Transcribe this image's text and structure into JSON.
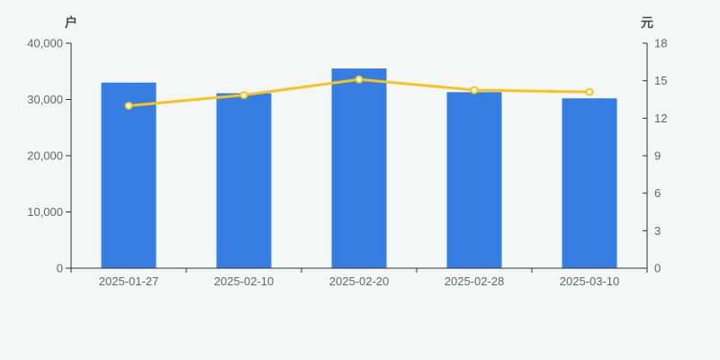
{
  "style": {
    "background": "#f5f6f6",
    "axis_line_color": "#333333",
    "tick_label_color": "#666666",
    "axis_title_color": "#4a4a4a",
    "bar_color": "#377ee2",
    "line_color": "#f9c31c",
    "marker_fill": "#ffffff"
  },
  "chart_data": {
    "type": "bar",
    "categories": [
      "2025-01-27",
      "2025-02-10",
      "2025-02-20",
      "2025-02-28",
      "2025-03-10"
    ],
    "series": [
      {
        "name": "户",
        "type": "bar",
        "y_axis": "left",
        "color": "#377ee2",
        "values": [
          33000,
          31100,
          35500,
          31300,
          30200
        ]
      },
      {
        "name": "元",
        "type": "line",
        "y_axis": "right",
        "color": "#f9c31c",
        "marker": "empty-circle",
        "values": [
          13.0,
          13.85,
          15.1,
          14.25,
          14.1
        ]
      }
    ],
    "title": "",
    "xlabel": "",
    "ylabel_left": "户",
    "ylabel_right": "元",
    "ylim_left": [
      0,
      40000
    ],
    "ylim_right": [
      0,
      18
    ],
    "left_ticks": [
      {
        "v": 0,
        "label": "0"
      },
      {
        "v": 10000,
        "label": "10,000"
      },
      {
        "v": 20000,
        "label": "20,000"
      },
      {
        "v": 30000,
        "label": "30,000"
      },
      {
        "v": 40000,
        "label": "40,000"
      }
    ],
    "right_ticks": [
      {
        "v": 0,
        "label": "0"
      },
      {
        "v": 3,
        "label": "3"
      },
      {
        "v": 6,
        "label": "6"
      },
      {
        "v": 9,
        "label": "9"
      },
      {
        "v": 12,
        "label": "12"
      },
      {
        "v": 15,
        "label": "15"
      },
      {
        "v": 18,
        "label": "18"
      }
    ],
    "grid": "off",
    "legend": "none"
  }
}
